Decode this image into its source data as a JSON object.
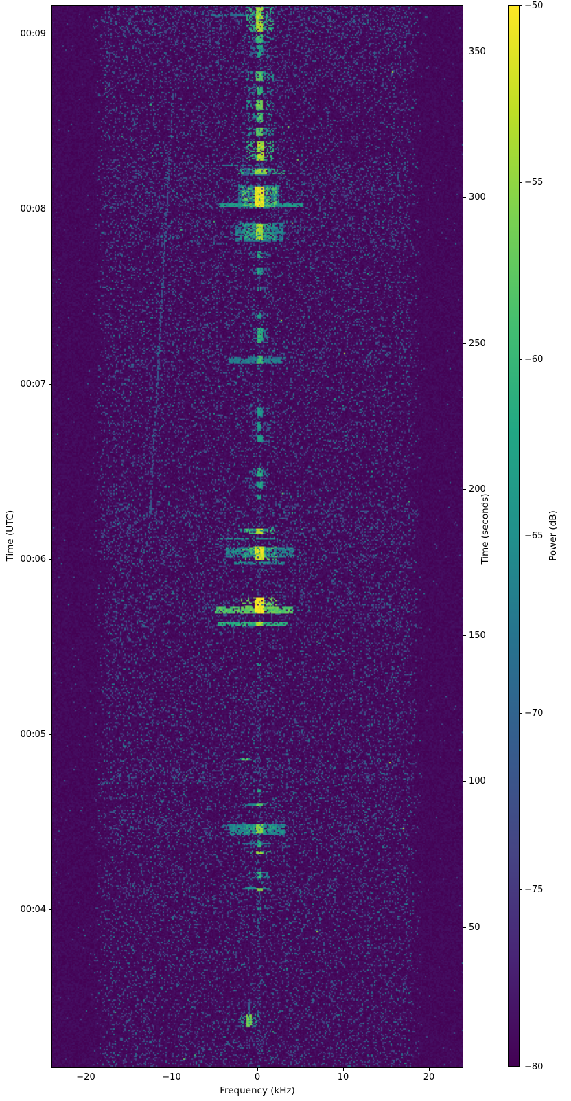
{
  "chart_data": {
    "type": "heatmap",
    "title": "",
    "xlabel": "Frequency (kHz)",
    "ylabel": "Time (UTC)",
    "ylabel_right": "Time (seconds)",
    "colorbar_label": "Power (dB)",
    "colormap": "viridis",
    "grid": false,
    "x_range_khz": [
      -24,
      24
    ],
    "x_ticks": [
      {
        "value": -20,
        "label": "−20"
      },
      {
        "value": -10,
        "label": "−10"
      },
      {
        "value": 0,
        "label": "0"
      },
      {
        "value": 10,
        "label": "10"
      },
      {
        "value": 20,
        "label": "20"
      }
    ],
    "time_range_seconds": [
      1.8,
      365.8
    ],
    "right_ticks": [
      {
        "value": 350,
        "label": "350"
      },
      {
        "value": 300,
        "label": "300"
      },
      {
        "value": 250,
        "label": "250"
      },
      {
        "value": 200,
        "label": "200"
      },
      {
        "value": 150,
        "label": "150"
      },
      {
        "value": 100,
        "label": "100"
      },
      {
        "value": 50,
        "label": "50"
      }
    ],
    "utc_ticks": [
      {
        "seconds": 356,
        "label": "00:09"
      },
      {
        "seconds": 296,
        "label": "00:08"
      },
      {
        "seconds": 236,
        "label": "00:07"
      },
      {
        "seconds": 176,
        "label": "00:06"
      },
      {
        "seconds": 116,
        "label": "00:05"
      },
      {
        "seconds": 56,
        "label": "00:04"
      }
    ],
    "power_range_db": [
      -80,
      -50
    ],
    "colorbar_ticks": [
      {
        "value": -50,
        "label": "−50"
      },
      {
        "value": -55,
        "label": "−55"
      },
      {
        "value": -60,
        "label": "−60"
      },
      {
        "value": -65,
        "label": "−65"
      },
      {
        "value": -70,
        "label": "−70"
      },
      {
        "value": -75,
        "label": "−75"
      },
      {
        "value": -80,
        "label": "−80"
      }
    ],
    "viridis_stops": [
      [
        68,
        1,
        84
      ],
      [
        72,
        36,
        117
      ],
      [
        70,
        68,
        132
      ],
      [
        54,
        92,
        141
      ],
      [
        39,
        114,
        142
      ],
      [
        33,
        144,
        140
      ],
      [
        34,
        167,
        132
      ],
      [
        68,
        190,
        112
      ],
      [
        122,
        209,
        81
      ],
      [
        189,
        222,
        38
      ],
      [
        253,
        231,
        37
      ]
    ],
    "noise": {
      "floor_db": -80,
      "passband_khz": 17.3,
      "edge_khz": 19.2,
      "speckle_prob": 0.13,
      "outside_mult": 0.03,
      "boost_bands": [
        [
          356,
          366,
          1.7
        ],
        [
          340,
          356,
          1.3
        ],
        [
          296,
          312,
          1.4
        ],
        [
          283,
          293,
          1.4
        ],
        [
          242,
          248,
          1.35
        ],
        [
          174,
          195,
          1.45
        ],
        [
          152,
          165,
          1.4
        ],
        [
          99,
          108,
          1.5
        ],
        [
          80,
          88,
          1.4
        ],
        [
          60,
          65,
          1.3
        ],
        [
          2,
          10,
          1.2
        ]
      ]
    },
    "carrier": {
      "f": 0.3,
      "w": 0.25,
      "prob": 0.15,
      "db_min": -73,
      "db_max": -68
    },
    "scatter_dots": {
      "prob": 0.0004,
      "db_min": -66,
      "db_max": -59,
      "bright_prob": 8e-05,
      "bright_db_min": -58,
      "bright_db_max": -53
    },
    "bursts_format": "[t0_s, t1_s, power_db, f_center_khz, f_halfwidth_khz]",
    "bursts": [
      [
        357,
        365.5,
        -54,
        0.25,
        0.4
      ],
      [
        353,
        356,
        -60,
        0.25,
        0.35
      ],
      [
        348,
        352,
        -63,
        0.3,
        0.3
      ],
      [
        340,
        343,
        -58,
        0.3,
        0.4
      ],
      [
        335,
        338,
        -60,
        0.3,
        0.35
      ],
      [
        330,
        333.5,
        -57,
        0.3,
        0.4
      ],
      [
        326,
        329,
        -59,
        0.3,
        0.35
      ],
      [
        321,
        324,
        -58,
        0.3,
        0.4
      ],
      [
        312.4,
        319.4,
        -54,
        0.4,
        0.4
      ],
      [
        308,
        310,
        -55,
        0.45,
        0.7
      ],
      [
        296.6,
        303.7,
        -51,
        0.25,
        0.5
      ],
      [
        285.3,
        291.2,
        -54,
        0.25,
        0.45
      ],
      [
        279,
        281.5,
        -62,
        0.3,
        0.3
      ],
      [
        273.5,
        276,
        -63,
        0.3,
        0.3
      ],
      [
        268,
        269.5,
        -65,
        0.3,
        0.25
      ],
      [
        258.5,
        260.5,
        -64,
        0.3,
        0.25
      ],
      [
        250,
        255,
        -61,
        0.3,
        0.3
      ],
      [
        243,
        246,
        -59,
        0.3,
        0.35
      ],
      [
        225,
        228,
        -64,
        0.3,
        0.3
      ],
      [
        220,
        223,
        -65,
        0.3,
        0.25
      ],
      [
        216,
        218.5,
        -64,
        0.3,
        0.3
      ],
      [
        204.5,
        207,
        -62,
        0.3,
        0.3
      ],
      [
        200,
        202.5,
        -63,
        0.3,
        0.3
      ],
      [
        196.5,
        198.5,
        -64,
        0.3,
        0.25
      ],
      [
        184.7,
        186.7,
        -53,
        0.25,
        0.45
      ],
      [
        175.9,
        180.6,
        -52,
        0.25,
        0.5
      ],
      [
        157.5,
        162.8,
        -50,
        0.25,
        0.55
      ],
      [
        153.2,
        154.6,
        -54,
        0.25,
        0.45
      ],
      [
        139.5,
        140.5,
        -64,
        0.3,
        0.25
      ],
      [
        107,
        107.8,
        -58,
        -1.44,
        0.3
      ],
      [
        96,
        97,
        -62,
        0.3,
        0.25
      ],
      [
        91.4,
        92.4,
        -58,
        0.25,
        0.35
      ],
      [
        82,
        85.5,
        -55,
        0.25,
        0.45
      ],
      [
        77.5,
        79.5,
        -61,
        0.25,
        0.3
      ],
      [
        75,
        76,
        -55,
        0.25,
        0.35
      ],
      [
        66.5,
        69,
        -60,
        0.25,
        0.3
      ],
      [
        62.4,
        63.4,
        -57,
        0.25,
        0.35
      ],
      [
        55.5,
        56.5,
        -65,
        0.3,
        0.25
      ],
      [
        15.9,
        19.9,
        -57,
        -0.96,
        0.3
      ],
      [
        20,
        25,
        -71,
        -0.96,
        0.15
      ]
    ],
    "haze_format": "[t0_s, t1_s, f0_khz, f1_khz, power_db]",
    "haze": [
      [
        296,
        304,
        -2.2,
        2.6,
        -67
      ],
      [
        285,
        291.5,
        -2.6,
        3.0,
        -67
      ],
      [
        243,
        245.5,
        -3.4,
        2.9,
        -68
      ],
      [
        176.6,
        179.8,
        -3.6,
        4.4,
        -66
      ],
      [
        81.8,
        85.5,
        -3.2,
        3.2,
        -66
      ],
      [
        307.5,
        310.5,
        -1.6,
        1.6,
        -70
      ]
    ],
    "streaks_format": "[t_s, f0_khz, f1_khz, power_db, halfthickness_px]",
    "streaks": [
      [
        362.5,
        -5.4,
        0.1,
        -68,
        1
      ],
      [
        311,
        -4.4,
        0.3,
        -67,
        1
      ],
      [
        297.2,
        -4.4,
        5.2,
        -64,
        2
      ],
      [
        288,
        -3.0,
        3.4,
        -66,
        1
      ],
      [
        244.3,
        -3.4,
        2.9,
        -67,
        2
      ],
      [
        186,
        -2.0,
        1.2,
        -66,
        1
      ],
      [
        183,
        -4.6,
        2.0,
        -65,
        1
      ],
      [
        174.7,
        -2.8,
        3.2,
        -66,
        1
      ],
      [
        158.5,
        -5.0,
        4.2,
        -58,
        3
      ],
      [
        153.9,
        -4.6,
        3.6,
        -61,
        2
      ],
      [
        91.9,
        -1.4,
        0.3,
        -66,
        1
      ],
      [
        84.5,
        -4.2,
        3.4,
        -68,
        2
      ],
      [
        83.3,
        -3.8,
        3.0,
        -68,
        1
      ],
      [
        78.5,
        -2.2,
        1.6,
        -68,
        1
      ],
      [
        62.9,
        -1.8,
        1.4,
        -66,
        1
      ],
      [
        63.2,
        -1.5,
        1.0,
        -67,
        1
      ]
    ],
    "diagonal_trace": {
      "t0": 186.5,
      "f0": -12.6,
      "t1": 337,
      "f1": -9.8,
      "db": -73
    }
  }
}
